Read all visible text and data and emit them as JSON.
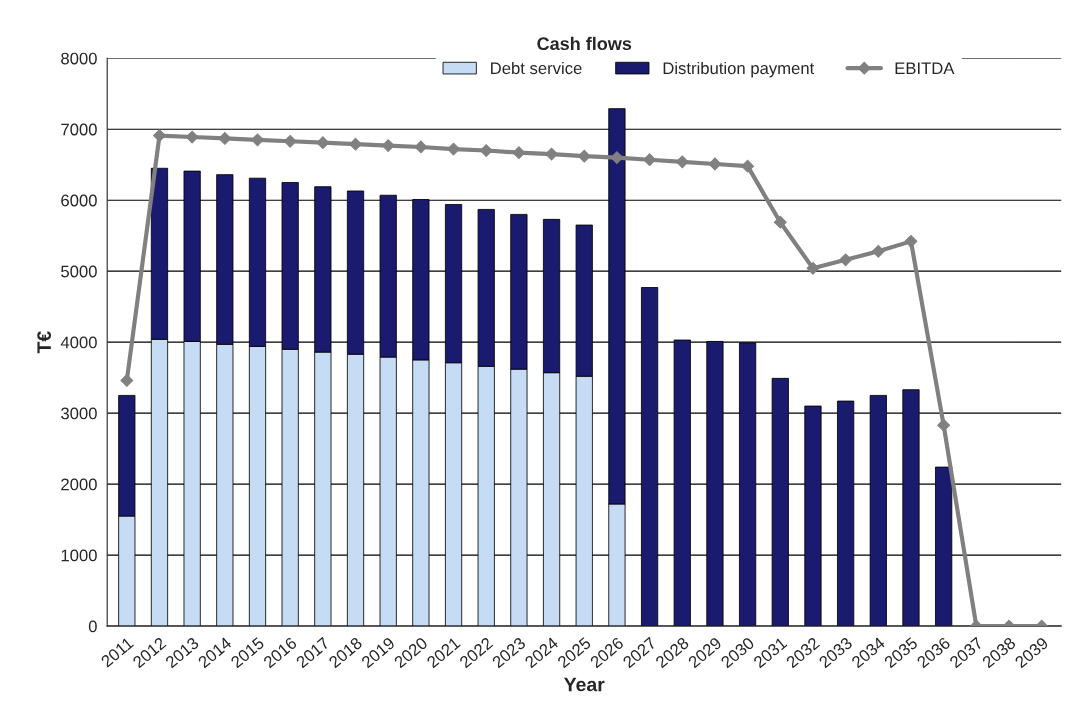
{
  "chart_data": {
    "type": "bar",
    "title": "Cash flows",
    "xlabel": "Year",
    "ylabel": "T€",
    "stacked": true,
    "categories": [
      "2011",
      "2012",
      "2013",
      "2014",
      "2015",
      "2016",
      "2017",
      "2018",
      "2019",
      "2020",
      "2021",
      "2022",
      "2023",
      "2024",
      "2025",
      "2026",
      "2027",
      "2028",
      "2029",
      "2030",
      "2031",
      "2032",
      "2033",
      "2034",
      "2035",
      "2036",
      "2037",
      "2038",
      "2039"
    ],
    "series": [
      {
        "name": "Debt service",
        "color": "#c6dcf5",
        "values": [
          1550,
          4040,
          4010,
          3970,
          3940,
          3900,
          3860,
          3830,
          3790,
          3750,
          3710,
          3660,
          3620,
          3570,
          3520,
          1720,
          null,
          null,
          null,
          null,
          null,
          null,
          null,
          null,
          null,
          null,
          null,
          null,
          null
        ]
      },
      {
        "name": "Distribution payment",
        "color": "#1a1a6e",
        "values": [
          1700,
          2410,
          2400,
          2390,
          2370,
          2350,
          2330,
          2300,
          2280,
          2260,
          2230,
          2210,
          2180,
          2160,
          2130,
          5570,
          4770,
          4030,
          4010,
          3990,
          3490,
          3100,
          3170,
          3250,
          3330,
          2240,
          null,
          null,
          null
        ]
      },
      {
        "name": "EBITDA",
        "type": "line",
        "color": "#808080",
        "marker": "diamond",
        "values": [
          3460,
          6910,
          6890,
          6870,
          6850,
          6830,
          6810,
          6790,
          6770,
          6750,
          6720,
          6700,
          6670,
          6650,
          6620,
          6600,
          6570,
          6540,
          6510,
          6480,
          5690,
          5040,
          5160,
          5280,
          5420,
          2830,
          0,
          0,
          0
        ]
      }
    ],
    "ylim": [
      0,
      8000
    ],
    "yticks": [
      0,
      1000,
      2000,
      3000,
      4000,
      5000,
      6000,
      7000,
      8000
    ],
    "grid": "y",
    "legend": "top"
  }
}
